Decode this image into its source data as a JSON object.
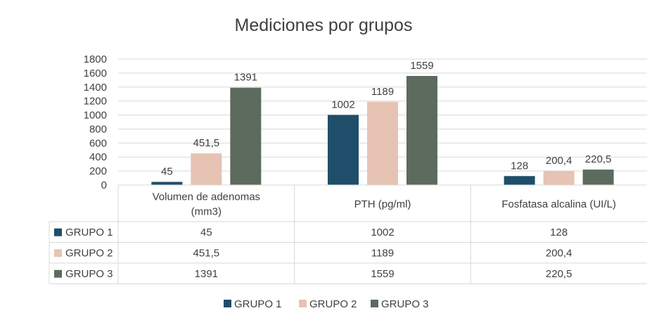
{
  "chart_data": {
    "type": "bar",
    "title": "Mediciones por grupos",
    "categories": [
      "Volumen de adenomas (mm3)",
      "PTH (pg/ml)",
      "Fosfatasa alcalina (UI/L)"
    ],
    "category_lines": [
      [
        "Volumen de adenomas",
        "(mm3)"
      ],
      [
        "PTH (pg/ml)"
      ],
      [
        "Fosfatasa alcalina (UI/L)"
      ]
    ],
    "series": [
      {
        "name": "GRUPO 1",
        "values": [
          45,
          1002,
          128
        ],
        "labels": [
          "45",
          "1002",
          "128"
        ],
        "color": "#1f4e6b"
      },
      {
        "name": "GRUPO 2",
        "values": [
          451.5,
          1189,
          200.4
        ],
        "labels": [
          "451,5",
          "1189",
          "200,4"
        ],
        "color": "#e6c3b3"
      },
      {
        "name": "GRUPO 3",
        "values": [
          1391,
          1559,
          220.5
        ],
        "labels": [
          "1391",
          "1559",
          "220,5"
        ],
        "color": "#5c6b5e"
      }
    ],
    "y_ticks": [
      0,
      200,
      400,
      600,
      800,
      1000,
      1200,
      1400,
      1600,
      1800
    ],
    "ylim": [
      0,
      1800
    ],
    "grid": true,
    "legend_position": "bottom",
    "data_table": true
  }
}
